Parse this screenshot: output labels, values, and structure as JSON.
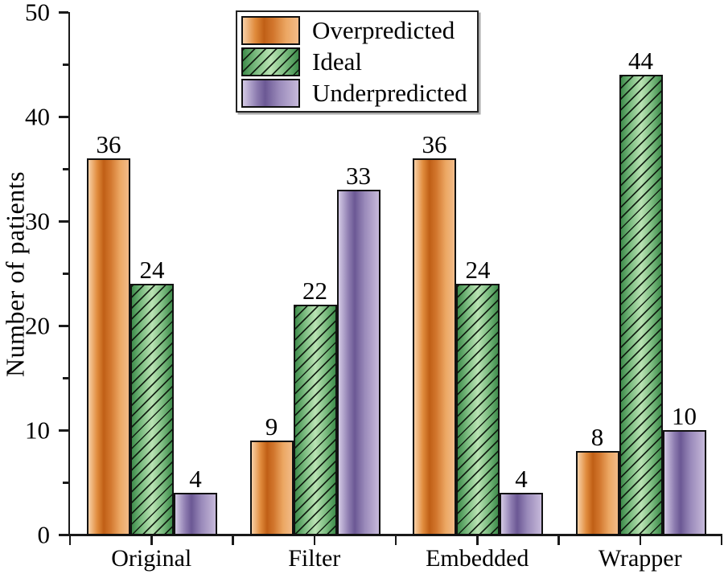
{
  "chart_data": {
    "type": "bar",
    "title": "",
    "xlabel": "",
    "ylabel": "Number of patients",
    "categories": [
      "Original",
      "Filter",
      "Embedded",
      "Wrapper"
    ],
    "series": [
      {
        "name": "Overpredicted",
        "values": [
          36,
          9,
          36,
          8
        ],
        "style": "gradient-fill",
        "color_light": "#f6c99e",
        "color_dark": "#c05f16"
      },
      {
        "name": "Ideal",
        "values": [
          24,
          22,
          24,
          44
        ],
        "style": "hatched",
        "hatch": "/",
        "color_light": "#bae3b4",
        "color_dark": "#3e8c4b"
      },
      {
        "name": "Underpredicted",
        "values": [
          4,
          33,
          4,
          10
        ],
        "style": "gradient-fill",
        "color_light": "#d4cae5",
        "color_dark": "#6b5894"
      }
    ],
    "bar_value_labels": [
      [
        36,
        24,
        4
      ],
      [
        9,
        22,
        33
      ],
      [
        36,
        24,
        4
      ],
      [
        8,
        44,
        10
      ]
    ],
    "ylim": [
      0,
      50
    ],
    "yticks": [
      0,
      10,
      20,
      30,
      40,
      50
    ],
    "minor_yticks": [
      5,
      15,
      25,
      35,
      45
    ],
    "grid": "off",
    "legend_position": "top-left-inside",
    "axis_color": "#1a1a1a",
    "bar_border_color": "#111111"
  }
}
